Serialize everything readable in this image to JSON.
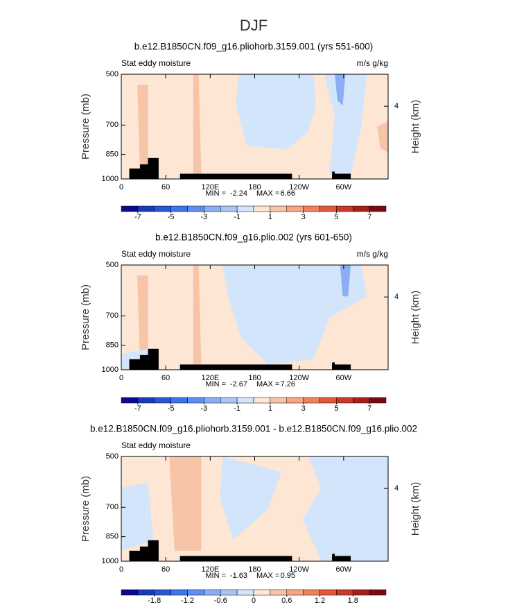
{
  "title": "DJF",
  "chart_data": [
    {
      "type": "contour",
      "title": "b.e12.B1850CN.f09_g16.pliohorb.3159.001 (yrs 551-600)",
      "left_label": "Stat eddy moisture",
      "right_label": "m/s g/kg",
      "ylabel": "Pressure (mb)",
      "y2label": "Height (km)",
      "min_label": "MIN =",
      "min": -2.24,
      "max_label": "MAX =",
      "max": 6.66,
      "xlim": [
        0,
        360
      ],
      "xticks": [
        0,
        60,
        {
          "value": 120,
          "label": "120E"
        },
        180,
        {
          "value": 240,
          "label": "120W"
        },
        {
          "value": 300,
          "label": "60W"
        }
      ],
      "ylim": [
        1000,
        500
      ],
      "yticks": [
        500,
        700,
        850,
        1000
      ],
      "log_y": true,
      "y2lim": [
        0,
        5.76
      ],
      "y2ticks": [
        4
      ],
      "colorbar": {
        "colors": [
          "#0c0a8c",
          "#1a3ab8",
          "#2a56d6",
          "#3a76e8",
          "#5f8ff0",
          "#8aaef2",
          "#aac4f4",
          "#d2e5fb",
          "#fde6d4",
          "#f8c4a8",
          "#f6a582",
          "#f08060",
          "#e2583e",
          "#c73a28",
          "#a3201a",
          "#7a0a10"
        ],
        "lim": [
          -8,
          8
        ],
        "ticks": [
          -7,
          -5,
          -3,
          -1,
          1,
          3,
          5,
          7
        ]
      }
    },
    {
      "type": "contour",
      "title": "b.e12.B1850CN.f09_g16.plio.002 (yrs 601-650)",
      "left_label": "Stat eddy moisture",
      "right_label": "m/s g/kg",
      "ylabel": "Pressure (mb)",
      "y2label": "Height (km)",
      "min_label": "MIN =",
      "min": -2.67,
      "max_label": "MAX =",
      "max": 7.26,
      "xlim": [
        0,
        360
      ],
      "xticks": [
        0,
        60,
        {
          "value": 120,
          "label": "120E"
        },
        180,
        {
          "value": 240,
          "label": "120W"
        },
        {
          "value": 300,
          "label": "60W"
        }
      ],
      "ylim": [
        1000,
        500
      ],
      "yticks": [
        500,
        700,
        850,
        1000
      ],
      "log_y": true,
      "y2lim": [
        0,
        5.76
      ],
      "y2ticks": [
        4
      ],
      "colorbar": {
        "colors": [
          "#0c0a8c",
          "#1a3ab8",
          "#2a56d6",
          "#3a76e8",
          "#5f8ff0",
          "#8aaef2",
          "#aac4f4",
          "#d2e5fb",
          "#fde6d4",
          "#f8c4a8",
          "#f6a582",
          "#f08060",
          "#e2583e",
          "#c73a28",
          "#a3201a",
          "#7a0a10"
        ],
        "lim": [
          -8,
          8
        ],
        "ticks": [
          -7,
          -5,
          -3,
          -1,
          1,
          3,
          5,
          7
        ]
      }
    },
    {
      "type": "contour",
      "title": "b.e12.B1850CN.f09_g16.pliohorb.3159.001 - b.e12.B1850CN.f09_g16.plio.002",
      "left_label": "Stat eddy moisture",
      "right_label": "",
      "ylabel": "Pressure (mb)",
      "y2label": "Height (km)",
      "min_label": "MIN =",
      "min": -1.63,
      "max_label": "MAX =",
      "max": 0.95,
      "xlim": [
        0,
        360
      ],
      "xticks": [
        0,
        60,
        {
          "value": 120,
          "label": "120E"
        },
        180,
        {
          "value": 240,
          "label": "120W"
        },
        {
          "value": 300,
          "label": "60W"
        }
      ],
      "ylim": [
        1000,
        500
      ],
      "yticks": [
        500,
        700,
        850,
        1000
      ],
      "log_y": true,
      "y2lim": [
        0,
        5.76
      ],
      "y2ticks": [
        4
      ],
      "colorbar": {
        "colors": [
          "#0c0a8c",
          "#1a3ab8",
          "#2a56d6",
          "#3a76e8",
          "#5f8ff0",
          "#8aaef2",
          "#aac4f4",
          "#d2e5fb",
          "#fde6d4",
          "#f8c4a8",
          "#f6a582",
          "#f08060",
          "#e2583e",
          "#c73a28",
          "#a3201a",
          "#7a0a10"
        ],
        "lim": [
          -2.4,
          2.4
        ],
        "ticks": [
          -1.8,
          -1.2,
          -0.6,
          0,
          0.6,
          1.2,
          1.8
        ]
      }
    }
  ]
}
